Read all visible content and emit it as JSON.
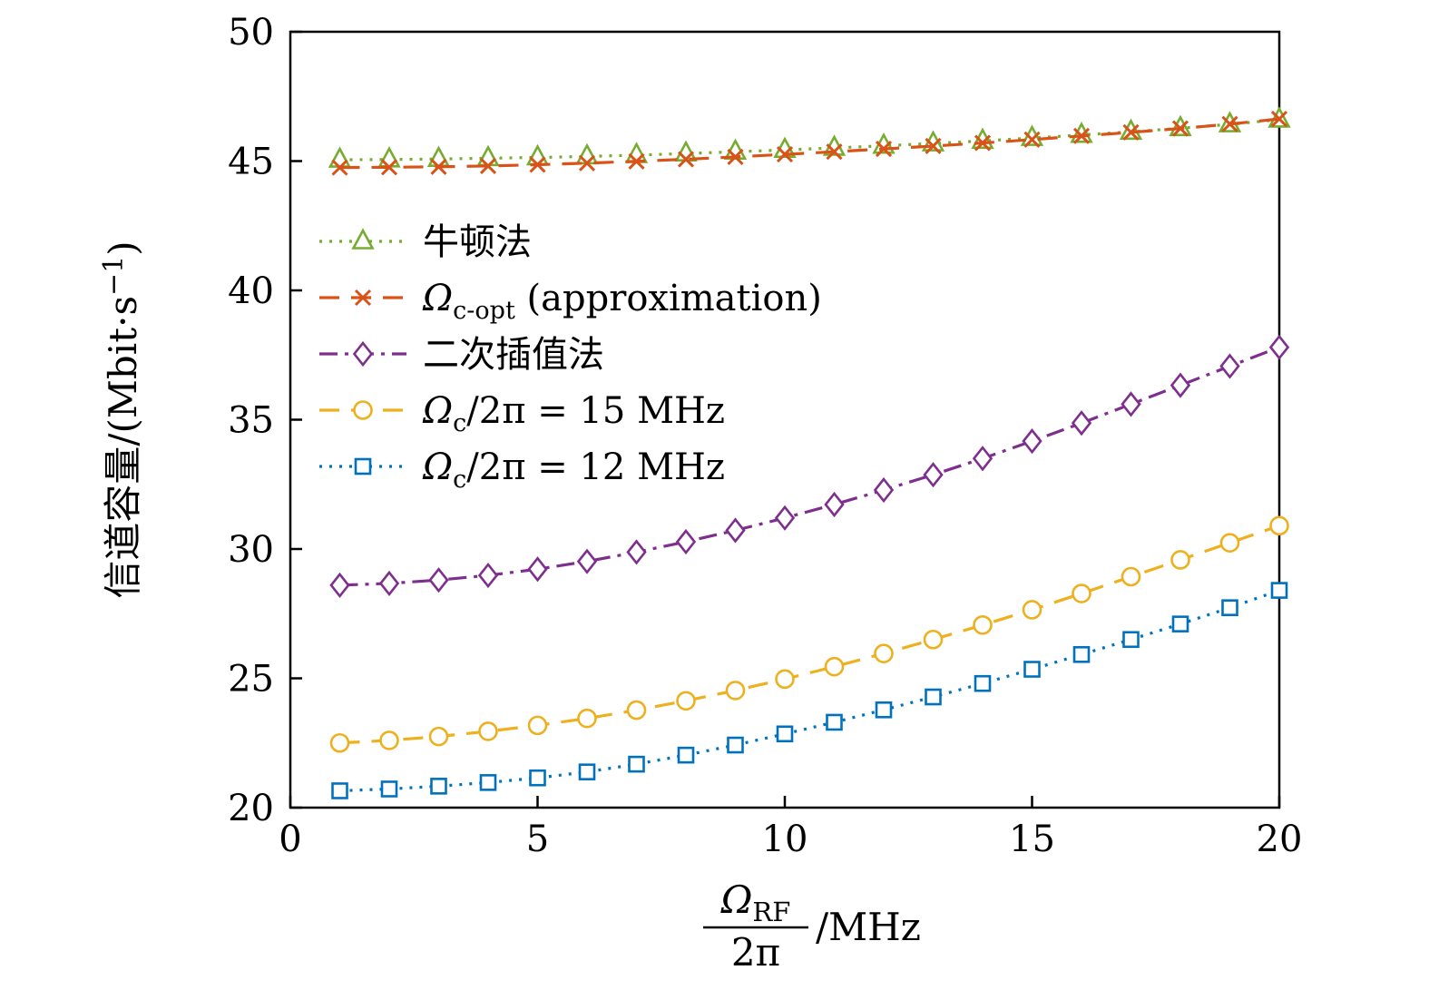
{
  "figure": {
    "background": "#ffffff",
    "frame_color": "#000000"
  },
  "chart_data": {
    "type": "line",
    "title": "",
    "xlabel": {
      "numerator_main": "Ω",
      "numerator_sub": "RF",
      "denominator": "2π",
      "unit": "/MHz"
    },
    "ylabel": {
      "main": "信道容量/(Mbit·s",
      "sup": "−1",
      "post": ")"
    },
    "xlim": [
      0,
      20
    ],
    "ylim": [
      20,
      50
    ],
    "xticks": [
      0,
      5,
      10,
      15,
      20
    ],
    "yticks": [
      20,
      25,
      30,
      35,
      40,
      45,
      50
    ],
    "grid": false,
    "legend_position": "upper-left-inside",
    "x": [
      1,
      2,
      3,
      4,
      5,
      6,
      7,
      8,
      9,
      10,
      11,
      12,
      13,
      14,
      15,
      16,
      17,
      18,
      19,
      20
    ],
    "series": [
      {
        "name": "牛顿法",
        "color": "#77ac30",
        "dash": "dotted",
        "marker": "triangle",
        "legend": {
          "main": "牛顿法",
          "italic": false,
          "sub": "",
          "post": ""
        },
        "values": [
          45.05,
          45.06,
          45.08,
          45.11,
          45.14,
          45.18,
          45.23,
          45.29,
          45.36,
          45.43,
          45.51,
          45.59,
          45.68,
          45.78,
          45.89,
          46.01,
          46.13,
          46.27,
          46.42,
          46.6
        ]
      },
      {
        "name": "Ωc-opt (approximation)",
        "color": "#d95319",
        "dash": "dashed",
        "marker": "cross",
        "legend": {
          "main": "Ω",
          "italic": true,
          "sub": "c-opt",
          "post": " (approximation)"
        },
        "values": [
          44.75,
          44.76,
          44.78,
          44.81,
          44.86,
          44.92,
          44.99,
          45.07,
          45.16,
          45.26,
          45.36,
          45.47,
          45.58,
          45.7,
          45.83,
          45.97,
          46.11,
          46.26,
          46.43,
          46.63
        ]
      },
      {
        "name": "二次插值法",
        "color": "#7e2f8e",
        "dash": "dashdot",
        "marker": "diamond",
        "legend": {
          "main": "二次插值法",
          "italic": false,
          "sub": "",
          "post": ""
        },
        "values": [
          28.6,
          28.67,
          28.8,
          28.98,
          29.22,
          29.52,
          29.88,
          30.28,
          30.72,
          31.2,
          31.72,
          32.28,
          32.87,
          33.5,
          34.17,
          34.87,
          35.6,
          36.33,
          37.07,
          37.8
        ]
      },
      {
        "name": "Ωc/2π = 15 MHz",
        "color": "#edb120",
        "dash": "dashed",
        "marker": "circle",
        "legend": {
          "main": "Ω",
          "italic": true,
          "sub": "c",
          "post": "/2π = 15 MHz"
        },
        "values": [
          22.5,
          22.6,
          22.75,
          22.95,
          23.18,
          23.45,
          23.77,
          24.13,
          24.53,
          24.97,
          25.45,
          25.96,
          26.5,
          27.06,
          27.65,
          28.28,
          28.93,
          29.58,
          30.24,
          30.9
        ]
      },
      {
        "name": "Ωc/2π = 12 MHz",
        "color": "#0072bd",
        "dash": "dotted",
        "marker": "square",
        "legend": {
          "main": "Ω",
          "italic": true,
          "sub": "c",
          "post": "/2π = 12 MHz"
        },
        "values": [
          20.65,
          20.72,
          20.83,
          20.97,
          21.15,
          21.38,
          21.68,
          22.03,
          22.42,
          22.85,
          23.3,
          23.78,
          24.28,
          24.8,
          25.35,
          25.92,
          26.5,
          27.1,
          27.73,
          28.4
        ]
      }
    ]
  }
}
